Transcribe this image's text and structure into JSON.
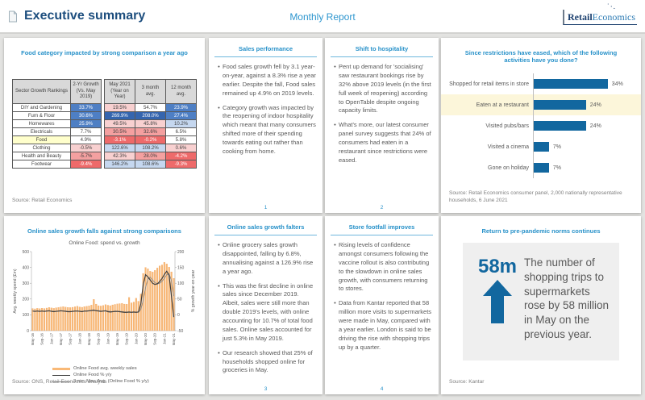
{
  "header": {
    "title": "Executive summary",
    "subtitle": "Monthly Report",
    "logo_part1": "Retail",
    "logo_part2": "Economics"
  },
  "colors": {
    "accent_blue": "#2791c9",
    "navy": "#1d4e7e",
    "bar_blue": "#12679f",
    "bar_orange": "#f9b977",
    "line_black": "#3f3f3f",
    "line_gray": "#8c8c8c",
    "text_gray": "#595959"
  },
  "panels": {
    "food_table": {
      "title": "Food category impacted by strong comparison a year ago",
      "source": "Source: Retail Economics",
      "table": {
        "headers": [
          "Sector Growth Rankings",
          "2-Yr Growth (Vs. May 2019)",
          "May 2021 (Year on Year)",
          "3 month avg.",
          "12 month avg."
        ],
        "rows": [
          {
            "label": "DIY and Gardening",
            "label_bg": "#ffffff",
            "cells": [
              [
                "33.7%",
                "#4e7fc4",
                "#ffffff"
              ],
              [
                "19.5%",
                "#f8d0d0",
                "#404040"
              ],
              [
                "54.7%",
                "#ffffff",
                "#404040"
              ],
              [
                "23.9%",
                "#4e7fc4",
                "#ffffff"
              ]
            ]
          },
          {
            "label": "Furn & Floor",
            "label_bg": "#ffffff",
            "cells": [
              [
                "30.6%",
                "#4e7fc4",
                "#ffffff"
              ],
              [
                "269.9%",
                "#3565ae",
                "#ffffff"
              ],
              [
                "208.0%",
                "#3565ae",
                "#ffffff"
              ],
              [
                "27.4%",
                "#4e7fc4",
                "#ffffff"
              ]
            ]
          },
          {
            "label": "Homewares",
            "label_bg": "#ffffff",
            "cells": [
              [
                "25.9%",
                "#4e7fc4",
                "#ffffff"
              ],
              [
                "49.5%",
                "#f8d0d0",
                "#404040"
              ],
              [
                "45.8%",
                "#f8d0d0",
                "#404040"
              ],
              [
                "10.2%",
                "#c5d7ef",
                "#404040"
              ]
            ]
          },
          {
            "label": "Electricals",
            "label_bg": "#ffffff",
            "cells": [
              [
                "7.7%",
                "#ffffff",
                "#404040"
              ],
              [
                "30.5%",
                "#f4a0a0",
                "#404040"
              ],
              [
                "32.6%",
                "#f4a0a0",
                "#404040"
              ],
              [
                "6.5%",
                "#ffffff",
                "#404040"
              ]
            ]
          },
          {
            "label": "Food",
            "label_bg": "#ffffcc",
            "cells": [
              [
                "4.9%",
                "#ffffff",
                "#404040"
              ],
              [
                "-3.1%",
                "#ee6a6a",
                "#ffffff"
              ],
              [
                "-0.2%",
                "#ee6a6a",
                "#ffffff"
              ],
              [
                "5.8%",
                "#ffffff",
                "#404040"
              ]
            ]
          },
          {
            "label": "Clothing",
            "label_bg": "#ffffff",
            "cells": [
              [
                "-0.5%",
                "#f8d0d0",
                "#404040"
              ],
              [
                "122.6%",
                "#c5d7ef",
                "#404040"
              ],
              [
                "108.2%",
                "#c5d7ef",
                "#404040"
              ],
              [
                "0.6%",
                "#f8d0d0",
                "#404040"
              ]
            ]
          },
          {
            "label": "Health and Beauty",
            "label_bg": "#ffffff",
            "cells": [
              [
                "-5.7%",
                "#f4a0a0",
                "#404040"
              ],
              [
                "42.3%",
                "#f8d0d0",
                "#404040"
              ],
              [
                "28.0%",
                "#f4a0a0",
                "#404040"
              ],
              [
                "-4.2%",
                "#ee6a6a",
                "#ffffff"
              ]
            ]
          },
          {
            "label": "Footwear",
            "label_bg": "#ffffff",
            "cells": [
              [
                "-9.4%",
                "#ee6a6a",
                "#ffffff"
              ],
              [
                "146.2%",
                "#c5d7ef",
                "#404040"
              ],
              [
                "108.6%",
                "#c5d7ef",
                "#404040"
              ],
              [
                "-9.3%",
                "#ee6a6a",
                "#ffffff"
              ]
            ]
          }
        ]
      }
    },
    "sales_performance": {
      "title": "Sales performance",
      "bullets": [
        "Food sales growth fell by 3.1 year-on-year, against a 8.3% rise a year earlier. Despite the fall, Food sales remained up 4.9% on 2019 levels.",
        "Category growth was impacted by the reopening of indoor hospitality which meant that many consumers shifted more of their spending towards eating out rather than cooking from home."
      ],
      "page": "1"
    },
    "shift_hospitality": {
      "title": "Shift to hospitality",
      "bullets": [
        "Pent up demand for 'socialising' saw restaurant bookings rise by 32% above 2019 levels (in the first full week of reopening) according to OpenTable despite ongoing capacity limits.",
        "What's more, our latest consumer panel survey suggests that 24% of consumers had eaten in a restaurant since restrictions were eased."
      ],
      "page": "2"
    },
    "activities": {
      "source": "Source: Retail Economics consumer panel, 2,000 nationally representative households, 6 June 2021"
    },
    "online_chart": {
      "title": "Online sales growth falls against strong comparisons",
      "source": "Source: ONS, Retail Economics analysis"
    },
    "online_falters": {
      "title": "Online sales growth falters",
      "bullets": [
        "Online grocery sales growth disappointed, falling by 6.8%, annualising against a 126.9% rise a year ago.",
        "This was the first decline in online sales since December 2019. Albeit, sales were still more than double 2019's levels, with online accounting for 10.7% of total food sales. Online sales accounted for just 5.3% in May 2019.",
        "Our research showed that 25% of households shopped online for groceries in May."
      ],
      "page": "3"
    },
    "footfall": {
      "title": "Store footfall improves",
      "bullets": [
        "Rising levels of confidence amongst consumers following the vaccine rollout is also contributing to the slowdown in online sales growth, with consumers returning to stores.",
        "Data from Kantar reported that 58 million more visits to supermarkets were made in May, compared with a year earlier. London is said to be driving the rise with shopping trips up by a quarter."
      ],
      "page": "4"
    },
    "pre_pandemic": {
      "title": "Return to pre-pandemic norms continues",
      "stat": "58m",
      "text": "The number of shopping trips to supermarkets rose by 58 million in May on the previous year.",
      "source": "Source: Kantar"
    }
  },
  "chart_data": [
    {
      "type": "bar",
      "orientation": "horizontal",
      "title": "Since restrictions have eased, which of the following activities have you done?",
      "categories": [
        "Shopped for retail items in store",
        "Eaten at a restaurant",
        "Visited pubs/bars",
        "Visited a cinema",
        "Gone on holiday"
      ],
      "values": [
        34,
        24,
        24,
        7,
        7
      ],
      "value_labels": [
        "34%",
        "24%",
        "24%",
        "7%",
        "7%"
      ],
      "highlight_index": 1,
      "bar_color": "#12679f",
      "xlim": [
        0,
        40
      ],
      "grid": false,
      "legend": "none"
    },
    {
      "type": "bar+line",
      "title": "Online Food: spend vs. growth",
      "ylabel_left": "Avg. weekly spend (£m)",
      "ylabel_right": "% growth year-on-year",
      "ylim_left": [
        0,
        500
      ],
      "yticks_left": [
        0,
        100,
        200,
        300,
        400,
        500
      ],
      "ylim_right": [
        -50,
        200
      ],
      "yticks_right": [
        -50,
        0,
        50,
        100,
        150,
        200
      ],
      "x_tick_labels": [
        "May-16",
        "Sep-16",
        "Jan-17",
        "May-17",
        "Sep-17",
        "Jan-18",
        "May-18",
        "Sep-18",
        "Jan-19",
        "May-19",
        "Sep-19",
        "Jan-20",
        "May-20",
        "Sep-20",
        "Jan-21",
        "May-21"
      ],
      "x_tick_every": 4,
      "grid": false,
      "legend_position": "bottom",
      "series": [
        {
          "name": "Online Food avg. weekly sales",
          "type": "bar",
          "axis": "left",
          "color": "#f9b977",
          "edge": "#ee9e55",
          "values": [
            140,
            138,
            141,
            139,
            142,
            140,
            143,
            147,
            144,
            141,
            145,
            147,
            150,
            152,
            149,
            147,
            146,
            148,
            151,
            155,
            150,
            148,
            152,
            154,
            157,
            162,
            198,
            168,
            158,
            156,
            159,
            165,
            161,
            158,
            163,
            166,
            169,
            171,
            173,
            168,
            167,
            210,
            176,
            181,
            205,
            186,
            232,
            362,
            400,
            392,
            376,
            371,
            381,
            396,
            410,
            416,
            432,
            422,
            402,
            372,
            331
          ]
        },
        {
          "name": "Online Food % y/y",
          "type": "line",
          "axis": "right",
          "color": "#3f3f3f",
          "values": [
            12,
            11,
            12,
            11,
            12,
            11,
            12,
            13,
            11,
            10,
            11,
            12,
            13,
            12,
            11,
            10,
            10,
            11,
            12,
            12,
            11,
            10,
            12,
            12,
            13,
            14,
            15,
            13,
            12,
            11,
            12,
            13,
            10,
            9,
            10,
            11,
            11,
            10,
            9,
            8,
            8,
            9,
            8,
            9,
            8,
            9,
            35,
            95,
            127,
            120,
            110,
            100,
            96,
            98,
            105,
            115,
            128,
            138,
            125,
            60,
            -7
          ]
        },
        {
          "name": "3 per. Mov. Avg. (Online Food % y/y)",
          "type": "line",
          "axis": "right",
          "color": "#8c8c8c",
          "derived": "moving_average_3_of_series_1"
        }
      ]
    }
  ]
}
